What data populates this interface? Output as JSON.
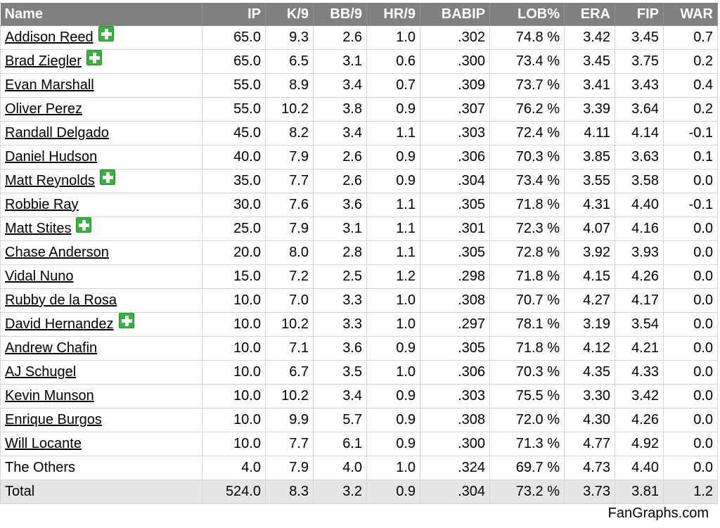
{
  "table": {
    "columns": [
      "Name",
      "IP",
      "K/9",
      "BB/9",
      "HR/9",
      "BABIP",
      "LOB%",
      "ERA",
      "FIP",
      "WAR"
    ],
    "rows": [
      {
        "name": "Addison Reed",
        "link": true,
        "injury": true,
        "ip": "65.0",
        "k9": "9.3",
        "bb9": "2.6",
        "hr9": "1.0",
        "babip": ".302",
        "lob": "74.8 %",
        "era": "3.42",
        "fip": "3.45",
        "war": "0.7"
      },
      {
        "name": "Brad Ziegler",
        "link": true,
        "injury": true,
        "ip": "65.0",
        "k9": "6.5",
        "bb9": "3.1",
        "hr9": "0.6",
        "babip": ".300",
        "lob": "73.4 %",
        "era": "3.45",
        "fip": "3.75",
        "war": "0.2"
      },
      {
        "name": "Evan Marshall",
        "link": true,
        "injury": false,
        "ip": "55.0",
        "k9": "8.9",
        "bb9": "3.4",
        "hr9": "0.7",
        "babip": ".309",
        "lob": "73.7 %",
        "era": "3.41",
        "fip": "3.43",
        "war": "0.4"
      },
      {
        "name": "Oliver Perez",
        "link": true,
        "injury": false,
        "ip": "55.0",
        "k9": "10.2",
        "bb9": "3.8",
        "hr9": "0.9",
        "babip": ".307",
        "lob": "76.2 %",
        "era": "3.39",
        "fip": "3.64",
        "war": "0.2"
      },
      {
        "name": "Randall Delgado",
        "link": true,
        "injury": false,
        "ip": "45.0",
        "k9": "8.2",
        "bb9": "3.4",
        "hr9": "1.1",
        "babip": ".303",
        "lob": "72.4 %",
        "era": "4.11",
        "fip": "4.14",
        "war": "-0.1"
      },
      {
        "name": "Daniel Hudson",
        "link": true,
        "injury": false,
        "ip": "40.0",
        "k9": "7.9",
        "bb9": "2.6",
        "hr9": "0.9",
        "babip": ".306",
        "lob": "70.3 %",
        "era": "3.85",
        "fip": "3.63",
        "war": "0.1"
      },
      {
        "name": "Matt Reynolds",
        "link": true,
        "injury": true,
        "ip": "35.0",
        "k9": "7.7",
        "bb9": "2.6",
        "hr9": "0.9",
        "babip": ".304",
        "lob": "73.4 %",
        "era": "3.55",
        "fip": "3.58",
        "war": "0.0"
      },
      {
        "name": "Robbie Ray",
        "link": true,
        "injury": false,
        "ip": "30.0",
        "k9": "7.6",
        "bb9": "3.6",
        "hr9": "1.1",
        "babip": ".305",
        "lob": "71.8 %",
        "era": "4.31",
        "fip": "4.40",
        "war": "-0.1"
      },
      {
        "name": "Matt Stites",
        "link": true,
        "injury": true,
        "ip": "25.0",
        "k9": "7.9",
        "bb9": "3.1",
        "hr9": "1.1",
        "babip": ".301",
        "lob": "72.3 %",
        "era": "4.07",
        "fip": "4.16",
        "war": "0.0"
      },
      {
        "name": "Chase Anderson",
        "link": true,
        "injury": false,
        "ip": "20.0",
        "k9": "8.0",
        "bb9": "2.8",
        "hr9": "1.1",
        "babip": ".305",
        "lob": "72.8 %",
        "era": "3.92",
        "fip": "3.93",
        "war": "0.0"
      },
      {
        "name": "Vidal Nuno",
        "link": true,
        "injury": false,
        "ip": "15.0",
        "k9": "7.2",
        "bb9": "2.5",
        "hr9": "1.2",
        "babip": ".298",
        "lob": "71.8 %",
        "era": "4.15",
        "fip": "4.26",
        "war": "0.0"
      },
      {
        "name": "Rubby de la Rosa",
        "link": true,
        "injury": false,
        "ip": "10.0",
        "k9": "7.0",
        "bb9": "3.3",
        "hr9": "1.0",
        "babip": ".308",
        "lob": "70.7 %",
        "era": "4.27",
        "fip": "4.17",
        "war": "0.0"
      },
      {
        "name": "David Hernandez",
        "link": true,
        "injury": true,
        "ip": "10.0",
        "k9": "10.2",
        "bb9": "3.3",
        "hr9": "1.0",
        "babip": ".297",
        "lob": "78.1 %",
        "era": "3.19",
        "fip": "3.54",
        "war": "0.0"
      },
      {
        "name": "Andrew Chafin",
        "link": true,
        "injury": false,
        "ip": "10.0",
        "k9": "7.1",
        "bb9": "3.6",
        "hr9": "0.9",
        "babip": ".305",
        "lob": "71.8 %",
        "era": "4.12",
        "fip": "4.21",
        "war": "0.0"
      },
      {
        "name": "AJ Schugel",
        "link": true,
        "injury": false,
        "ip": "10.0",
        "k9": "6.7",
        "bb9": "3.5",
        "hr9": "1.0",
        "babip": ".306",
        "lob": "70.3 %",
        "era": "4.35",
        "fip": "4.33",
        "war": "0.0"
      },
      {
        "name": "Kevin Munson",
        "link": true,
        "injury": false,
        "ip": "10.0",
        "k9": "10.2",
        "bb9": "3.4",
        "hr9": "0.9",
        "babip": ".303",
        "lob": "75.5 %",
        "era": "3.30",
        "fip": "3.42",
        "war": "0.0"
      },
      {
        "name": "Enrique Burgos",
        "link": true,
        "injury": false,
        "ip": "10.0",
        "k9": "9.9",
        "bb9": "5.7",
        "hr9": "0.9",
        "babip": ".308",
        "lob": "72.0 %",
        "era": "4.30",
        "fip": "4.26",
        "war": "0.0"
      },
      {
        "name": "Will Locante",
        "link": true,
        "injury": false,
        "ip": "10.0",
        "k9": "7.7",
        "bb9": "6.1",
        "hr9": "0.9",
        "babip": ".300",
        "lob": "71.3 %",
        "era": "4.77",
        "fip": "4.92",
        "war": "0.0"
      },
      {
        "name": "The Others",
        "link": false,
        "injury": false,
        "ip": "4.0",
        "k9": "7.9",
        "bb9": "4.0",
        "hr9": "1.0",
        "babip": ".324",
        "lob": "69.7 %",
        "era": "4.73",
        "fip": "4.40",
        "war": "0.0"
      }
    ],
    "total": {
      "name": "Total",
      "ip": "524.0",
      "k9": "8.3",
      "bb9": "3.2",
      "hr9": "0.9",
      "babip": ".304",
      "lob": "73.2 %",
      "era": "3.73",
      "fip": "3.81",
      "war": "1.2"
    }
  },
  "credit": "FanGraphs.com",
  "colors": {
    "header_bg": "#808080",
    "header_text": "#ffffff",
    "total_bg": "#e6e6e6",
    "injury_icon": "#38b23f"
  },
  "icons": {
    "injury": "green-cross-icon"
  }
}
